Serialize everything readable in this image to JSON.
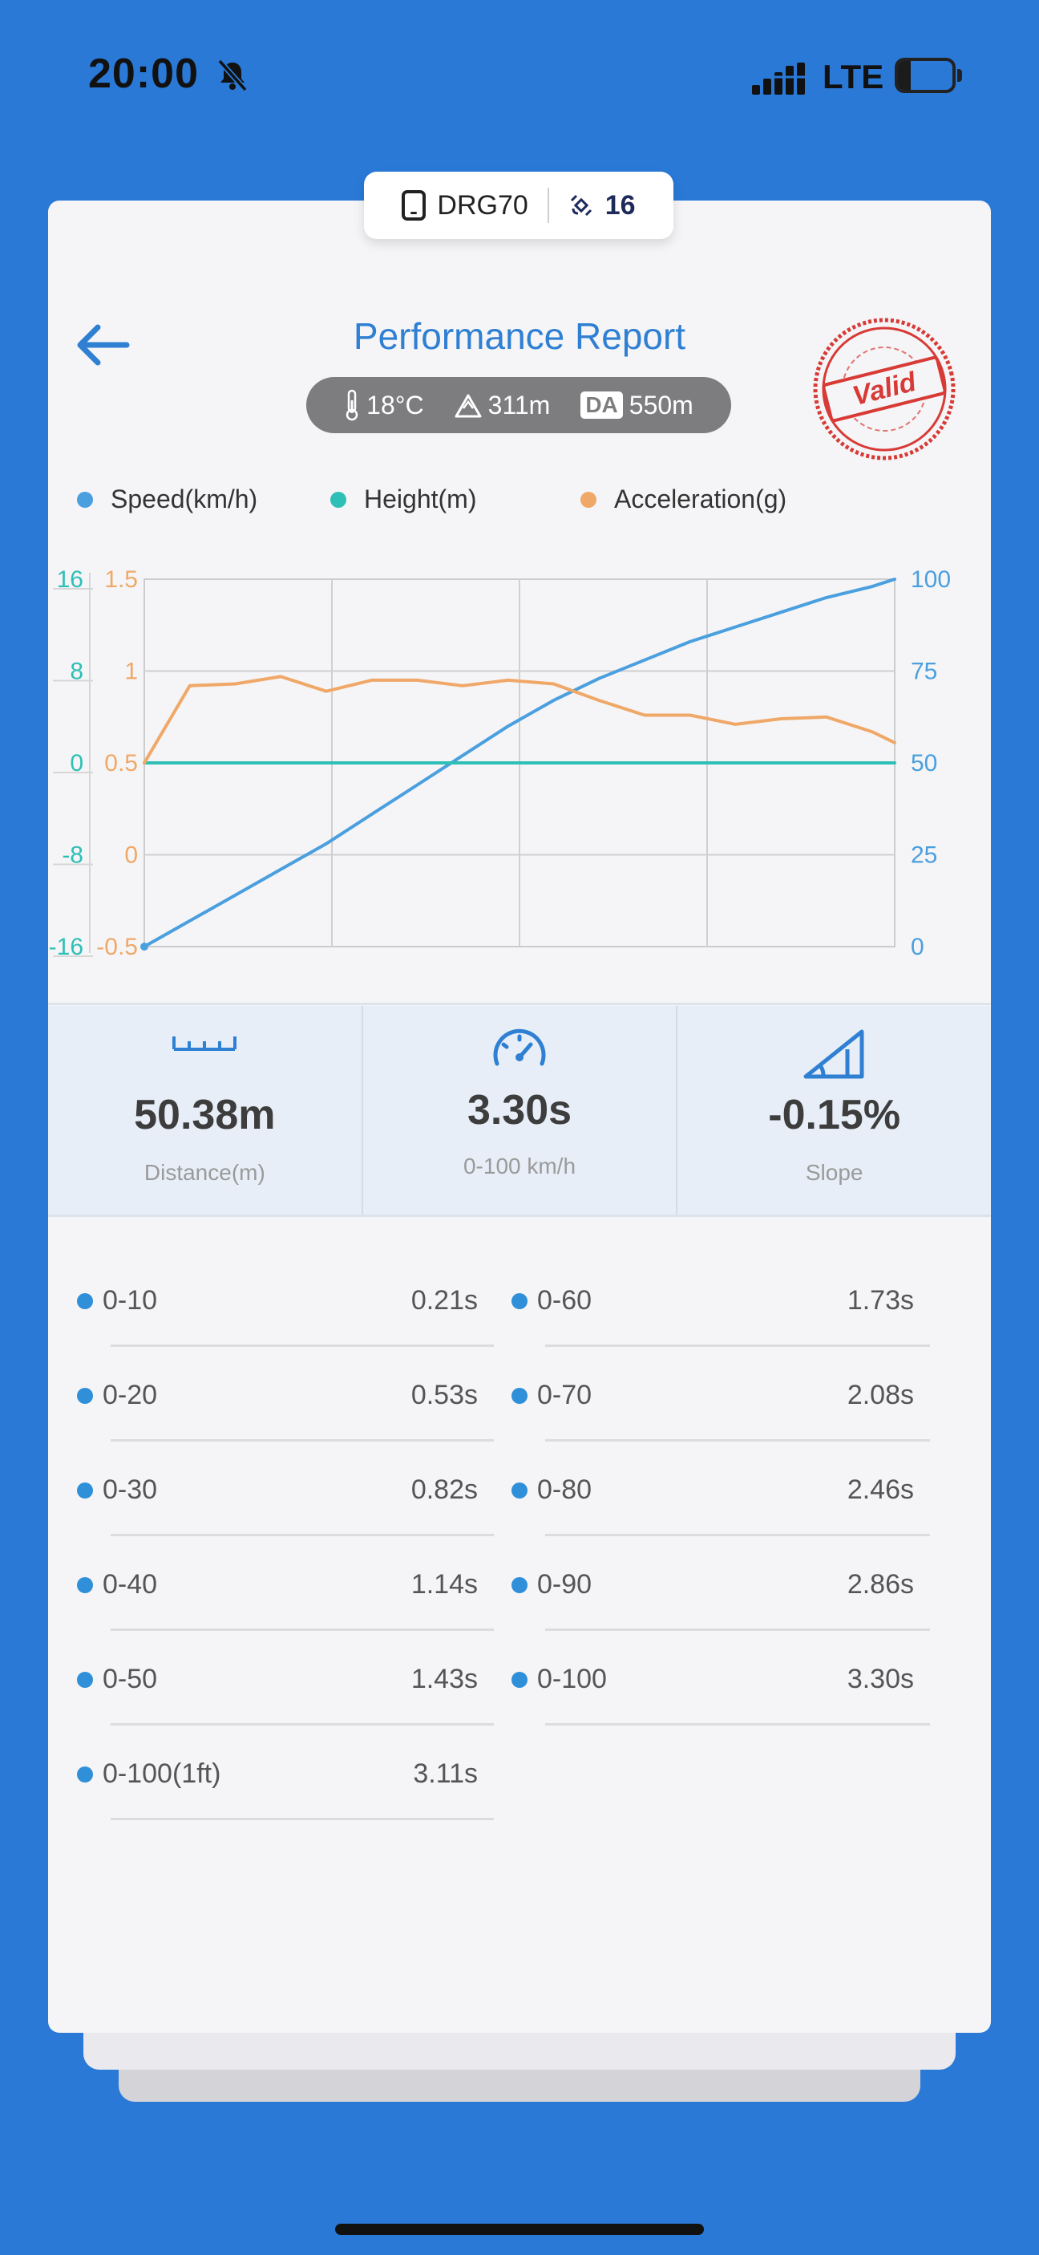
{
  "status_bar": {
    "time": "20:00",
    "network": "LTE",
    "battery": "23",
    "battery_level": 0.23
  },
  "device": {
    "name": "DRG70",
    "satellites": "16"
  },
  "header": {
    "title": "Performance Report"
  },
  "conditions": {
    "temperature": "18°C",
    "altitude": "311m",
    "da_badge": "DA",
    "density_altitude": "550m"
  },
  "stamp": {
    "text": "Valid"
  },
  "legend": [
    {
      "label": "Speed(km/h)",
      "color": "#4a9fdf"
    },
    {
      "label": "Height(m)",
      "color": "#2ebfb6"
    },
    {
      "label": "Acceleration(g)",
      "color": "#f0a868"
    }
  ],
  "colors": {
    "speed": "#4a9fdf",
    "height": "#2ebfb6",
    "acceleration": "#f0a868",
    "accent": "#2f7fd3"
  },
  "chart_data": {
    "type": "line",
    "x": [
      0,
      0.2,
      0.4,
      0.6,
      0.8,
      1.0,
      1.2,
      1.4,
      1.6,
      1.8,
      2.0,
      2.2,
      2.4,
      2.6,
      2.8,
      3.0,
      3.2,
      3.3
    ],
    "xlim": [
      0,
      3.3
    ],
    "axes": {
      "height": {
        "ticks": [
          "16",
          "8",
          "0",
          "-8",
          "-16"
        ],
        "ylim": [
          -16,
          16
        ]
      },
      "acceleration": {
        "ticks": [
          "1.5",
          "1",
          "0.5",
          "0",
          "-0.5"
        ],
        "ylim": [
          -0.5,
          1.5
        ]
      },
      "speed": {
        "ticks": [
          "100",
          "75",
          "50",
          "25",
          "0"
        ],
        "ylim": [
          0,
          100
        ]
      }
    },
    "grid": true,
    "series": [
      {
        "name": "Speed(km/h)",
        "axis": "speed",
        "values": [
          0,
          7,
          14,
          21,
          28,
          36,
          44,
          52,
          60,
          67,
          73,
          78,
          83,
          87,
          91,
          95,
          98,
          100
        ]
      },
      {
        "name": "Height(m)",
        "axis": "height",
        "values": [
          0,
          0,
          0,
          0,
          0,
          0,
          0,
          0,
          0,
          0,
          0,
          0,
          0,
          0,
          0,
          0,
          0,
          0
        ]
      },
      {
        "name": "Acceleration(g)",
        "axis": "acceleration",
        "values": [
          0.5,
          0.92,
          0.93,
          0.97,
          0.89,
          0.95,
          0.95,
          0.92,
          0.95,
          0.93,
          0.84,
          0.76,
          0.76,
          0.71,
          0.74,
          0.75,
          0.67,
          0.61
        ]
      }
    ]
  },
  "stats": [
    {
      "icon": "ruler-icon",
      "value": "50.38m",
      "label": "Distance(m)"
    },
    {
      "icon": "speedometer-icon",
      "value": "3.30s",
      "label": "0-100 km/h"
    },
    {
      "icon": "slope-icon",
      "value": "-0.15%",
      "label": "Slope"
    }
  ],
  "splits": [
    {
      "label": "0-10",
      "time": "0.21s"
    },
    {
      "label": "0-20",
      "time": "0.53s"
    },
    {
      "label": "0-30",
      "time": "0.82s"
    },
    {
      "label": "0-40",
      "time": "1.14s"
    },
    {
      "label": "0-50",
      "time": "1.43s"
    },
    {
      "label": "0-100(1ft)",
      "time": "3.11s"
    },
    {
      "label": "0-60",
      "time": "1.73s"
    },
    {
      "label": "0-70",
      "time": "2.08s"
    },
    {
      "label": "0-80",
      "time": "2.46s"
    },
    {
      "label": "0-90",
      "time": "2.86s"
    },
    {
      "label": "0-100",
      "time": "3.30s"
    }
  ]
}
